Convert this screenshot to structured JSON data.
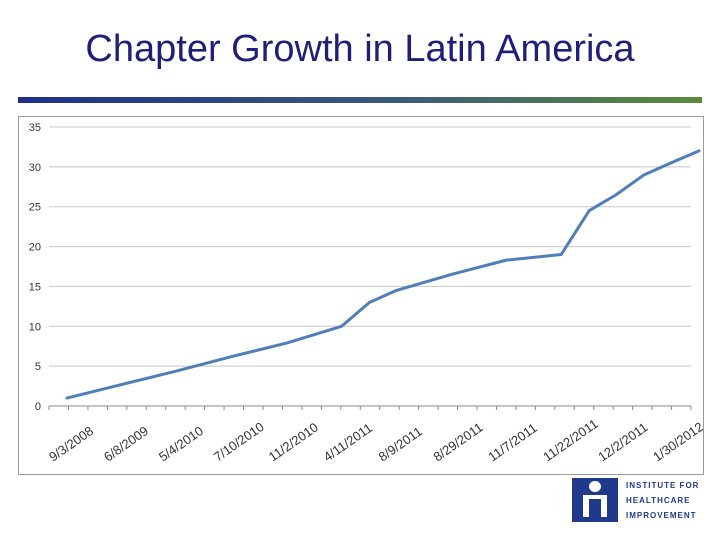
{
  "slide": {
    "title": "Chapter Growth in Latin America"
  },
  "logo": {
    "lines": [
      "Institute for",
      "Healthcare",
      "Improvement"
    ]
  },
  "colors": {
    "title": "#1f1f7a",
    "line": "#4f7fb8",
    "grid": "#c8c8c8",
    "logo": "#1f3a8a"
  },
  "chart_data": {
    "type": "line",
    "title": "",
    "xlabel": "",
    "ylabel": "",
    "ylim": [
      0,
      35
    ],
    "yticks": [
      0,
      5,
      10,
      15,
      20,
      25,
      30,
      35
    ],
    "grid": true,
    "legend": "none",
    "x_tick_labels": [
      "9/3/2008",
      "6/8/2009",
      "5/4/2010",
      "7/10/2010",
      "11/2/2010",
      "4/11/2011",
      "8/9/2011",
      "8/29/2011",
      "11/7/2011",
      "11/22/2011",
      "12/2/2011",
      "1/30/2012"
    ],
    "series": [
      {
        "x": [
          "9/3/2008",
          "6/8/2009",
          "5/4/2010",
          "7/10/2010",
          "11/2/2010",
          "4/11/2011",
          "4/11/2011",
          "8/9/2011",
          "8/29/2011",
          "11/7/2011",
          "11/22/2011",
          "11/22/2011",
          "12/2/2011",
          "12/2/2011",
          "1/30/2012",
          "1/30/2012"
        ],
        "values": [
          1,
          2.7,
          4.4,
          6.2,
          7.9,
          10,
          13,
          14.5,
          16.5,
          18.3,
          19,
          24.5,
          26.5,
          29,
          30.5,
          32
        ]
      }
    ]
  }
}
